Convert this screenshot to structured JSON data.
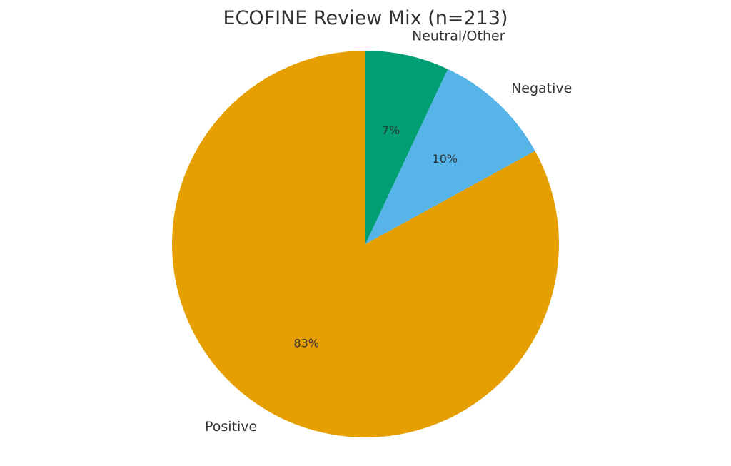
{
  "chart_data": {
    "type": "pie",
    "title": "ECOFINE Review Mix (n=213)",
    "categories": [
      "Neutral/Other",
      "Negative",
      "Positive"
    ],
    "values": [
      7,
      10,
      83
    ],
    "value_labels": [
      "7%",
      "10%",
      "83%"
    ],
    "colors": [
      "#009E73",
      "#56B4E9",
      "#E69F00"
    ],
    "start_angle": 90,
    "direction": "clockwise",
    "legend": "none"
  }
}
